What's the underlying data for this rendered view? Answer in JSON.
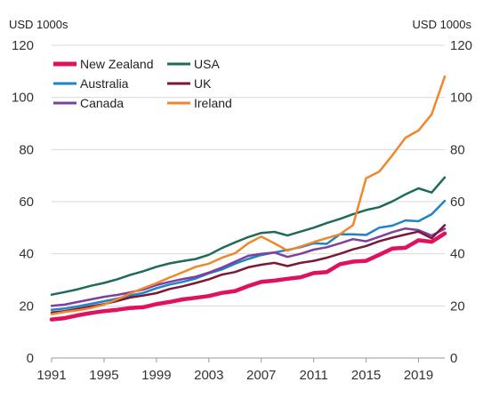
{
  "chart_data": {
    "type": "line",
    "left_unit": "USD 1000s",
    "right_unit": "USD 1000s",
    "ylim": [
      0,
      120
    ],
    "y_ticks": [
      0,
      20,
      40,
      60,
      80,
      100,
      120
    ],
    "xlim": [
      1991,
      2021
    ],
    "x_ticks": [
      1991,
      1995,
      1999,
      2003,
      2007,
      2011,
      2015,
      2019
    ],
    "grid": "horizontal",
    "legend_position": "top-left",
    "x": [
      1991,
      1992,
      1993,
      1994,
      1995,
      1996,
      1997,
      1998,
      1999,
      2000,
      2001,
      2002,
      2003,
      2004,
      2005,
      2006,
      2007,
      2008,
      2009,
      2010,
      2011,
      2012,
      2013,
      2014,
      2015,
      2016,
      2017,
      2018,
      2019,
      2020,
      2021
    ],
    "series": [
      {
        "name": "New Zealand",
        "color": "#e0115f",
        "width": 4.5,
        "values": [
          14.8,
          15.3,
          16.4,
          17.3,
          18.0,
          18.5,
          19.2,
          19.5,
          20.7,
          21.5,
          22.5,
          23.1,
          23.8,
          25.0,
          25.7,
          27.6,
          29.2,
          29.7,
          30.4,
          31.0,
          32.6,
          33.0,
          36.0,
          37.0,
          37.3,
          39.6,
          42.0,
          42.3,
          45.2,
          44.6,
          47.8
        ]
      },
      {
        "name": "USA",
        "color": "#1e6b5c",
        "width": 2.5,
        "values": [
          24.3,
          25.3,
          26.4,
          27.7,
          28.8,
          30.2,
          31.9,
          33.3,
          35.0,
          36.3,
          37.2,
          38.0,
          39.6,
          42.2,
          44.4,
          46.4,
          48.0,
          48.4,
          47.0,
          48.5,
          50.0,
          51.8,
          53.4,
          55.2,
          56.8,
          57.9,
          60.1,
          62.8,
          65.1,
          63.5,
          69.3
        ]
      },
      {
        "name": "Australia",
        "color": "#1f84c6",
        "width": 2.5,
        "values": [
          18.5,
          19.0,
          19.8,
          20.8,
          21.8,
          22.8,
          24.0,
          25.0,
          26.8,
          28.2,
          29.2,
          30.5,
          32.5,
          34.0,
          36.2,
          38.0,
          39.5,
          40.5,
          41.5,
          42.5,
          44.0,
          43.8,
          47.5,
          47.5,
          47.2,
          50.0,
          50.8,
          52.8,
          52.5,
          55.2,
          60.3
        ]
      },
      {
        "name": "UK",
        "color": "#7b1838",
        "width": 2.5,
        "values": [
          17.5,
          18.0,
          18.9,
          19.8,
          20.7,
          21.9,
          23.2,
          24.0,
          24.9,
          26.5,
          27.5,
          28.8,
          30.2,
          32.0,
          33.0,
          34.8,
          35.8,
          36.5,
          35.3,
          36.5,
          37.3,
          38.5,
          40.0,
          41.7,
          43.0,
          44.8,
          46.2,
          47.4,
          48.5,
          46.0,
          51.0
        ]
      },
      {
        "name": "Canada",
        "color": "#7e3fa1",
        "width": 2.5,
        "values": [
          20.0,
          20.5,
          21.5,
          22.5,
          23.5,
          24.2,
          25.2,
          26.3,
          28.0,
          29.2,
          30.3,
          31.2,
          32.8,
          34.7,
          37.0,
          39.2,
          40.0,
          40.5,
          38.8,
          40.0,
          41.6,
          42.5,
          44.0,
          45.6,
          44.8,
          46.5,
          48.3,
          49.7,
          49.1,
          47.0,
          49.6
        ]
      },
      {
        "name": "Ireland",
        "color": "#f0872b",
        "width": 2.5,
        "values": [
          16.8,
          17.7,
          18.3,
          19.2,
          20.5,
          22.5,
          24.8,
          26.8,
          28.7,
          30.9,
          32.9,
          35.0,
          36.2,
          38.5,
          40.2,
          44.0,
          46.6,
          44.0,
          41.2,
          42.8,
          44.5,
          46.0,
          47.5,
          51.0,
          69.0,
          71.5,
          77.8,
          84.5,
          87.3,
          93.5,
          108.0
        ]
      }
    ]
  }
}
